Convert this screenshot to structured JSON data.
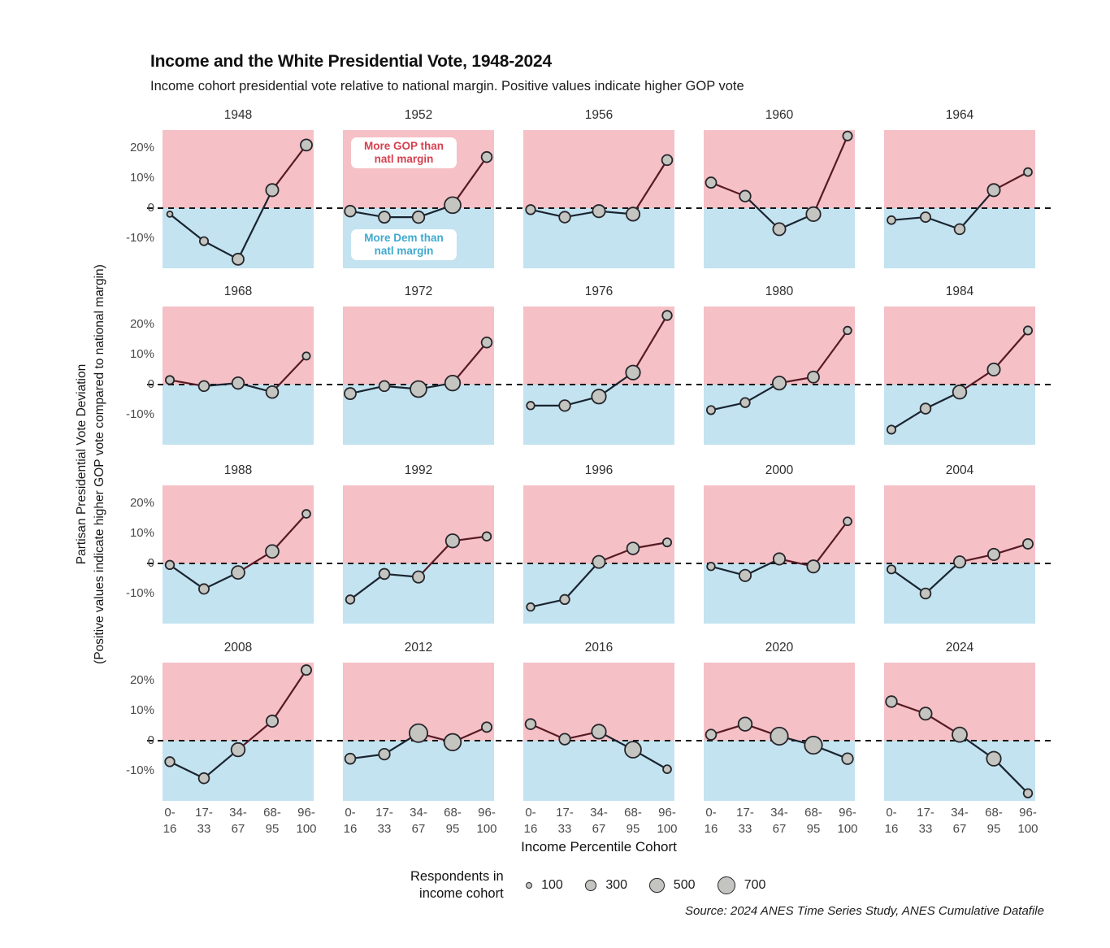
{
  "header": {
    "title": "Income and the White Presidential Vote, 1948-2024",
    "subtitle": "Income cohort presidential vote relative to national margin. Positive values indicate higher GOP vote"
  },
  "axes": {
    "y_label_line1": "Partisan Presidential Vote Deviation",
    "y_label_line2": "(Positive values indicate higher GOP vote compared to national margin)",
    "x_label": "Income Percentile Cohort",
    "y_ticks": [
      {
        "label": "20%",
        "value": 20
      },
      {
        "label": "10%",
        "value": 10
      },
      {
        "label": "0",
        "value": 0
      },
      {
        "label": "-10%",
        "value": -10
      }
    ],
    "x_tick_lines": [
      [
        "0-",
        "16"
      ],
      [
        "17-",
        "33"
      ],
      [
        "34-",
        "67"
      ],
      [
        "68-",
        "95"
      ],
      [
        "96-",
        "100"
      ]
    ]
  },
  "annotations": {
    "panel_year": 1952,
    "gop": "More GOP than\nnatl margin",
    "dem": "More Dem than\nnatl margin"
  },
  "legend": {
    "label": "Respondents in\nincome cohort",
    "sizes": [
      100,
      300,
      500,
      700
    ]
  },
  "source": "Source: 2024 ANES Time Series Study, ANES Cumulative Datafile",
  "colors": {
    "gop_fill": "#f5c0c6",
    "dem_fill": "#c3e3f0",
    "gop_text": "#d6404f",
    "dem_text": "#3fa9cf",
    "line_gop": "#571a25",
    "line_dem": "#1a2430",
    "point_fill": "#c4c4c0",
    "point_stroke": "#26262b",
    "zero_dash": "#161616"
  },
  "chart_data": {
    "type": "line",
    "layout": "small multiples, 4 rows x 5 columns",
    "title": "Income and the White Presidential Vote, 1948-2024",
    "x_categories": [
      "0-16",
      "17-33",
      "34-67",
      "68-95",
      "96-100"
    ],
    "xlabel": "Income Percentile Cohort",
    "ylabel": "Partisan Presidential Vote Deviation (%)",
    "ylim": [
      -20,
      26
    ],
    "zero_line": "dashed, deviation = 0",
    "bubble_size_meaning": "respondents in income cohort (legend: 100, 300, 500, 700)",
    "regions": {
      "above_zero": "More GOP than natl margin",
      "below_zero": "More Dem than natl margin"
    },
    "panels": [
      {
        "year": 1948,
        "deviation_pct": [
          -2,
          -11,
          -17,
          6,
          21
        ],
        "respondents": [
          70,
          150,
          280,
          330,
          280
        ]
      },
      {
        "year": 1952,
        "deviation_pct": [
          -1,
          -3,
          -3,
          1,
          17
        ],
        "respondents": [
          260,
          280,
          300,
          560,
          230
        ]
      },
      {
        "year": 1956,
        "deviation_pct": [
          -0.5,
          -3,
          -1,
          -2,
          16
        ],
        "respondents": [
          190,
          260,
          330,
          380,
          230
        ]
      },
      {
        "year": 1960,
        "deviation_pct": [
          8.5,
          4,
          -7,
          -2,
          24
        ],
        "respondents": [
          240,
          260,
          330,
          430,
          180
        ]
      },
      {
        "year": 1964,
        "deviation_pct": [
          -4,
          -3,
          -7,
          6,
          12
        ],
        "respondents": [
          140,
          210,
          230,
          330,
          140
        ]
      },
      {
        "year": 1968,
        "deviation_pct": [
          1.5,
          -0.5,
          0.5,
          -2.5,
          9.5
        ],
        "respondents": [
          150,
          230,
          300,
          310,
          120
        ]
      },
      {
        "year": 1972,
        "deviation_pct": [
          -3,
          -0.5,
          -1.5,
          0.5,
          14
        ],
        "respondents": [
          280,
          230,
          560,
          490,
          230
        ]
      },
      {
        "year": 1976,
        "deviation_pct": [
          -7,
          -7,
          -4,
          4,
          23
        ],
        "respondents": [
          130,
          260,
          430,
          430,
          190
        ]
      },
      {
        "year": 1980,
        "deviation_pct": [
          -8.5,
          -6,
          0.5,
          2.5,
          18
        ],
        "respondents": [
          150,
          190,
          380,
          280,
          130
        ]
      },
      {
        "year": 1984,
        "deviation_pct": [
          -15,
          -8,
          -2.5,
          5,
          18
        ],
        "respondents": [
          150,
          230,
          390,
          330,
          150
        ]
      },
      {
        "year": 1988,
        "deviation_pct": [
          -0.5,
          -8.5,
          -3,
          4,
          16.5
        ],
        "respondents": [
          160,
          210,
          360,
          360,
          140
        ]
      },
      {
        "year": 1992,
        "deviation_pct": [
          -12,
          -3.5,
          -4.5,
          7.5,
          9
        ],
        "respondents": [
          160,
          230,
          290,
          390,
          160
        ]
      },
      {
        "year": 1996,
        "deviation_pct": [
          -14.5,
          -12,
          0.5,
          5,
          7
        ],
        "respondents": [
          130,
          190,
          330,
          310,
          150
        ]
      },
      {
        "year": 2000,
        "deviation_pct": [
          -1,
          -4,
          1.5,
          -1,
          14
        ],
        "respondents": [
          130,
          290,
          290,
          330,
          140
        ]
      },
      {
        "year": 2004,
        "deviation_pct": [
          -2,
          -10,
          0.5,
          3,
          6.5
        ],
        "respondents": [
          150,
          230,
          290,
          290,
          210
        ]
      },
      {
        "year": 2008,
        "deviation_pct": [
          -7,
          -12.5,
          -3,
          6.5,
          23.5
        ],
        "respondents": [
          190,
          230,
          390,
          290,
          210
        ]
      },
      {
        "year": 2012,
        "deviation_pct": [
          -6,
          -4.5,
          2.5,
          -0.5,
          4.5
        ],
        "respondents": [
          230,
          260,
          700,
          600,
          210
        ]
      },
      {
        "year": 2016,
        "deviation_pct": [
          5.5,
          0.5,
          3,
          -3,
          -9.5
        ],
        "respondents": [
          230,
          260,
          430,
          560,
          140
        ]
      },
      {
        "year": 2020,
        "deviation_pct": [
          2,
          5.5,
          1.5,
          -1.5,
          -6
        ],
        "respondents": [
          230,
          390,
          650,
          650,
          260
        ]
      },
      {
        "year": 2024,
        "deviation_pct": [
          13,
          9,
          2,
          -6,
          -17.5
        ],
        "respondents": [
          260,
          330,
          460,
          430,
          160
        ]
      }
    ]
  }
}
